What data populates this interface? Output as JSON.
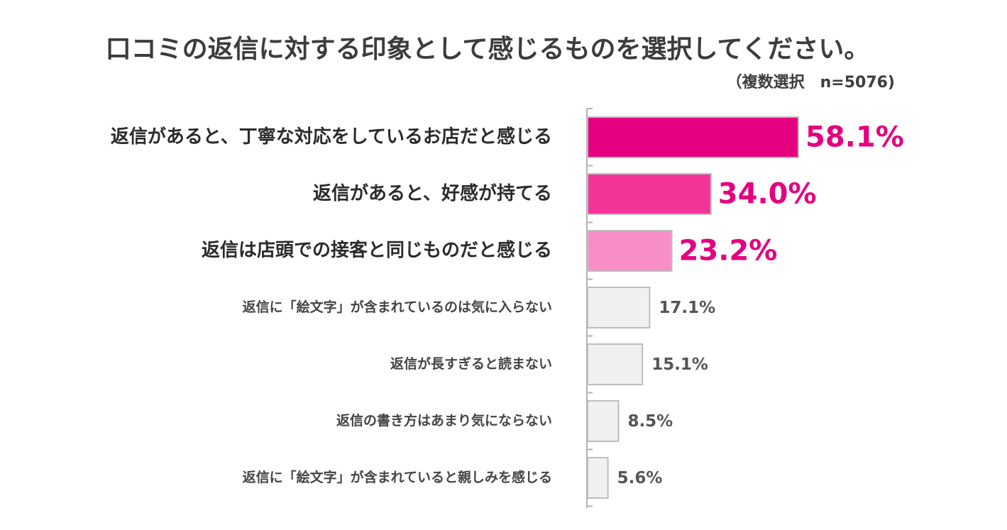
{
  "title": "口コミの返信に対する印象として感じるものを選択してください。",
  "subtitle": "（複数選択　n=5076)",
  "chart_data": {
    "type": "bar",
    "orientation": "horizontal",
    "title": "口コミの返信に対する印象として感じるものを選択してください。",
    "subtitle": "（複数選択　n=5076)",
    "categories": [
      "返信があると、丁寧な対応をしているお店だと感じる",
      "返信があると、好感が持てる",
      "返信は店頭での接客と同じものだと感じる",
      "返信に「絵文字」が含まれているのは気に入らない",
      "返信が長すぎると読まない",
      "返信の書き方はあまり気にならない",
      "返信に「絵文字」が含まれていると親しみを感じる"
    ],
    "values": [
      58.1,
      34.0,
      23.2,
      17.1,
      15.1,
      8.5,
      5.6
    ],
    "value_labels": [
      "58.1%",
      "34.0%",
      "23.2%",
      "17.1%",
      "15.1%",
      "8.5%",
      "5.6%"
    ],
    "unit": "%",
    "bar_colors": [
      "#e4007f",
      "#f5349a",
      "#f78fc6",
      "#f0f0f0",
      "#f0f0f0",
      "#f0f0f0",
      "#f0f0f0"
    ],
    "label_colors": [
      "#e4007f",
      "#e4007f",
      "#e4007f",
      "#555555",
      "#555555",
      "#555555",
      "#555555"
    ],
    "category_label_color": "#2b2b2b",
    "grid": false,
    "legend": "none"
  }
}
